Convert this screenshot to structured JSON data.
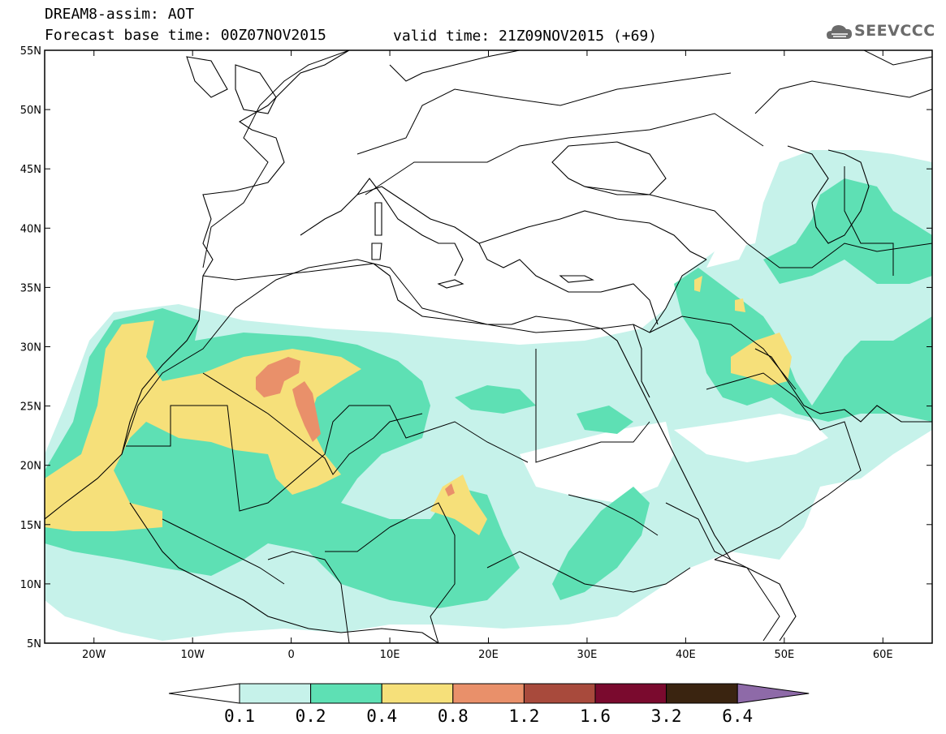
{
  "header": {
    "line1": "DREAM8-assim: AOT",
    "line2": "Forecast base time: 00Z07NOV2015",
    "valid": "valid time: 21Z09NOV2015 (+69)"
  },
  "logo": {
    "text": "SEEVCCC",
    "icon": "cloud-icon"
  },
  "axes": {
    "lat_labels": [
      "55N",
      "50N",
      "45N",
      "40N",
      "35N",
      "30N",
      "25N",
      "20N",
      "15N",
      "10N",
      "5N"
    ],
    "lon_labels": [
      "20W",
      "10W",
      "0",
      "10E",
      "20E",
      "30E",
      "40E",
      "50E",
      "60E"
    ],
    "lat_range": [
      5,
      55
    ],
    "lon_range": [
      -25,
      65
    ]
  },
  "colorbar": {
    "labels": [
      "0.1",
      "0.2",
      "0.4",
      "0.8",
      "1.2",
      "1.6",
      "3.2",
      "6.4"
    ],
    "colors": [
      "#ffffff",
      "#c6f2ea",
      "#5ee0b4",
      "#f6e07a",
      "#e9906a",
      "#a84a3c",
      "#7a0a2e",
      "#3a2410",
      "#8e6aa8"
    ]
  },
  "colors": {
    "aot_0_1": "#c6f2ea",
    "aot_0_2": "#5ee0b4",
    "aot_0_4": "#f6e07a",
    "aot_0_8": "#e9906a",
    "border": "#000000"
  }
}
